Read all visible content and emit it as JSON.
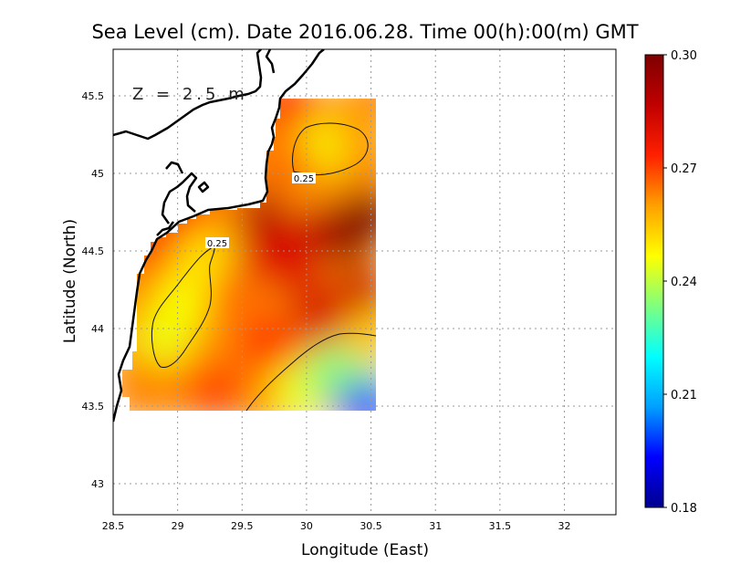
{
  "chart_data": {
    "type": "heatmap",
    "title": "Sea Level (cm). Date 2016.06.28. Time 00(h):00(m) GMT",
    "xlabel": "Longitude (East)",
    "ylabel": "Latitude (North)",
    "annotation": "Z = 2.5 m",
    "xlim": [
      28.5,
      32.4
    ],
    "ylim": [
      42.8,
      45.8
    ],
    "x_ticks": [
      28.5,
      29,
      29.5,
      30,
      30.5,
      31,
      31.5,
      32
    ],
    "y_ticks": [
      43,
      43.5,
      44,
      44.5,
      45,
      45.5
    ],
    "grid": true,
    "colorbar": {
      "min": 0.18,
      "max": 0.3,
      "ticks": [
        "0.30",
        "0.27",
        "0.24",
        "0.21",
        "0.18"
      ],
      "colors": [
        "#00008f",
        "#0000ff",
        "#00a0ff",
        "#00ffff",
        "#7fff7f",
        "#ffff00",
        "#ffa000",
        "#ff2000",
        "#c00000",
        "#7f0000"
      ]
    },
    "contours": [
      {
        "level": 0.25,
        "label": "0.25"
      },
      {
        "level": 0.25,
        "label": "0.25"
      }
    ],
    "field_points": [
      {
        "lon": 28.7,
        "lat": 43.6,
        "value": 0.263
      },
      {
        "lon": 28.65,
        "lat": 44.2,
        "value": 0.262
      },
      {
        "lon": 28.8,
        "lat": 44.5,
        "value": 0.268
      },
      {
        "lon": 29.0,
        "lat": 44.7,
        "value": 0.274
      },
      {
        "lon": 28.9,
        "lat": 43.95,
        "value": 0.245
      },
      {
        "lon": 29.05,
        "lat": 44.2,
        "value": 0.246
      },
      {
        "lon": 29.2,
        "lat": 44.45,
        "value": 0.25
      },
      {
        "lon": 29.3,
        "lat": 43.6,
        "value": 0.27
      },
      {
        "lon": 29.45,
        "lat": 44.2,
        "value": 0.265
      },
      {
        "lon": 29.7,
        "lat": 44.5,
        "value": 0.28
      },
      {
        "lon": 29.7,
        "lat": 43.9,
        "value": 0.272
      },
      {
        "lon": 29.9,
        "lat": 44.4,
        "value": 0.28
      },
      {
        "lon": 29.7,
        "lat": 44.75,
        "value": 0.29
      },
      {
        "lon": 30.0,
        "lat": 44.7,
        "value": 0.282
      },
      {
        "lon": 30.3,
        "lat": 44.6,
        "value": 0.296
      },
      {
        "lon": 30.5,
        "lat": 44.75,
        "value": 0.3
      },
      {
        "lon": 30.45,
        "lat": 44.2,
        "value": 0.285
      },
      {
        "lon": 30.1,
        "lat": 44.1,
        "value": 0.282
      },
      {
        "lon": 29.7,
        "lat": 43.55,
        "value": 0.262
      },
      {
        "lon": 29.95,
        "lat": 43.6,
        "value": 0.245
      },
      {
        "lon": 30.2,
        "lat": 43.7,
        "value": 0.235
      },
      {
        "lon": 30.45,
        "lat": 43.55,
        "value": 0.195
      },
      {
        "lon": 30.4,
        "lat": 43.8,
        "value": 0.232
      },
      {
        "lon": 30.5,
        "lat": 43.95,
        "value": 0.255
      },
      {
        "lon": 29.95,
        "lat": 44.95,
        "value": 0.26
      },
      {
        "lon": 30.05,
        "lat": 45.2,
        "value": 0.245
      },
      {
        "lon": 30.3,
        "lat": 45.2,
        "value": 0.246
      },
      {
        "lon": 30.5,
        "lat": 45.05,
        "value": 0.262
      },
      {
        "lon": 30.5,
        "lat": 45.45,
        "value": 0.268
      },
      {
        "lon": 29.85,
        "lat": 45.45,
        "value": 0.272
      },
      {
        "lon": 29.85,
        "lat": 45.05,
        "value": 0.265
      },
      {
        "lon": 30.4,
        "lat": 45.35,
        "value": 0.26
      }
    ]
  },
  "colors": {
    "coast": "#000000",
    "grid": "#999999",
    "frame": "#000000",
    "background": "#ffffff"
  }
}
